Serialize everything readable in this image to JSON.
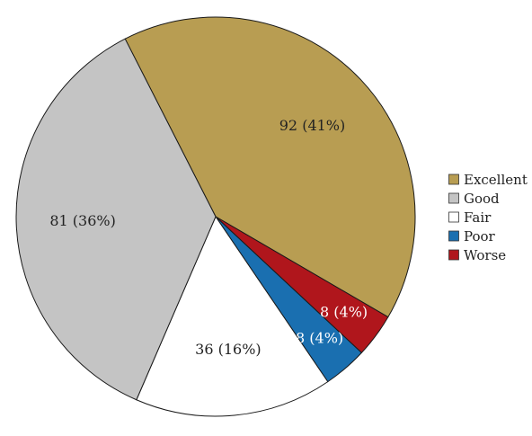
{
  "chart_data": {
    "type": "pie",
    "title": "",
    "legend_position": "right",
    "start_angle_deg": -117,
    "direction": "clockwise",
    "slices": [
      {
        "category": "Excellent",
        "value": 92,
        "label": "92 (41%)",
        "color": "#b89d52",
        "label_color": "#222222"
      },
      {
        "category": "Worse",
        "value": 8,
        "label": "8 (4%)",
        "color": "#b0161c",
        "label_color": "#ffffff"
      },
      {
        "category": "Poor",
        "value": 8,
        "label": "8 (4%)",
        "color": "#1a6fb0",
        "label_color": "#ffffff"
      },
      {
        "category": "Fair",
        "value": 36,
        "label": "36 (16%)",
        "color": "#ffffff",
        "label_color": "#222222"
      },
      {
        "category": "Good",
        "value": 81,
        "label": "81 (36%)",
        "color": "#c4c4c4",
        "label_color": "#222222"
      }
    ],
    "legend": [
      {
        "label": "Excellent",
        "color": "#b89d52"
      },
      {
        "label": "Good",
        "color": "#c4c4c4"
      },
      {
        "label": "Fair",
        "color": "#ffffff"
      },
      {
        "label": "Poor",
        "color": "#1a6fb0"
      },
      {
        "label": "Worse",
        "color": "#b0161c"
      }
    ]
  }
}
